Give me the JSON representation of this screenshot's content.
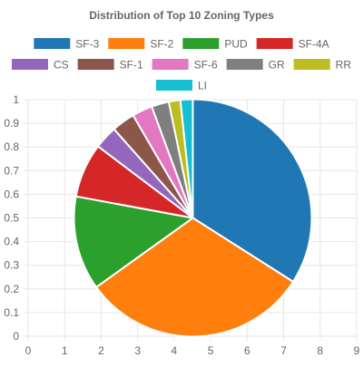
{
  "chart_data": {
    "type": "pie",
    "title": "Distribution of Top 10 Zoning Types",
    "legend_position": "top",
    "grid": true,
    "xlim": [
      0,
      9
    ],
    "ylim": [
      0,
      1
    ],
    "x_ticks": [
      "0",
      "1",
      "2",
      "3",
      "4",
      "5",
      "6",
      "7",
      "8",
      "9"
    ],
    "y_ticks": [
      "0",
      "0.1",
      "0.2",
      "0.3",
      "0.4",
      "0.5",
      "0.6",
      "0.7",
      "0.8",
      "0.9",
      "1"
    ],
    "slices": [
      {
        "label": "SF-3",
        "value": 34.5,
        "color": "#1f77b4"
      },
      {
        "label": "SF-2",
        "value": 31.5,
        "color": "#ff7f0e"
      },
      {
        "label": "PUD",
        "value": 13.0,
        "color": "#2ca02c"
      },
      {
        "label": "SF-4A",
        "value": 7.5,
        "color": "#d62728"
      },
      {
        "label": "CS",
        "value": 3.2,
        "color": "#9467bd"
      },
      {
        "label": "SF-1",
        "value": 3.2,
        "color": "#8c564b"
      },
      {
        "label": "SF-6",
        "value": 2.8,
        "color": "#e377c2"
      },
      {
        "label": "GR",
        "value": 2.4,
        "color": "#7f7f7f"
      },
      {
        "label": "RR",
        "value": 1.6,
        "color": "#bcbd22"
      },
      {
        "label": "LI",
        "value": 1.7,
        "color": "#17becf"
      }
    ]
  }
}
